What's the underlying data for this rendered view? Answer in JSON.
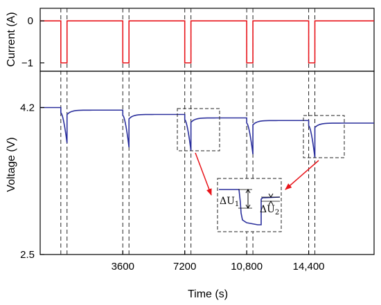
{
  "chart_data": {
    "type": "line",
    "xlabel": "Time (s)",
    "x_ticks": [
      "3600",
      "7200",
      "10,800",
      "14,400"
    ],
    "x_tick_values": [
      3600,
      7200,
      10800,
      14400
    ],
    "xlim": [
      -1200,
      18200
    ],
    "pulse_windows": [
      [
        0,
        360
      ],
      [
        3600,
        3960
      ],
      [
        7200,
        7560
      ],
      [
        10800,
        11160
      ],
      [
        14400,
        14760
      ]
    ],
    "panels": [
      {
        "name": "current",
        "ylabel": "Current (A)",
        "y_ticks": [
          "0",
          "−1"
        ],
        "y_tick_values": [
          0,
          -1
        ],
        "ylim": [
          -1.2,
          0.3
        ],
        "color": "#e8141a",
        "rest_value": 0,
        "pulse_value": -1
      },
      {
        "name": "voltage",
        "ylabel": "Voltage (V)",
        "y_ticks": [
          "4.2",
          "2.5"
        ],
        "y_tick_values": [
          4.2,
          2.5
        ],
        "ylim": [
          2.5,
          4.62
        ],
        "color": "#2a2f9c",
        "rest_levels": [
          4.2,
          4.17,
          4.12,
          4.08,
          4.05,
          4.02
        ],
        "pulse_minimum": [
          3.79,
          3.74,
          3.7,
          3.66,
          3.62
        ]
      }
    ],
    "inset": {
      "label_1": "ΔU",
      "sub_1": "1",
      "label_2": "ΔU",
      "sub_2": "2"
    },
    "colors": {
      "current": "#e8141a",
      "voltage": "#2a2f9c",
      "arrow": "#e8141a"
    }
  }
}
